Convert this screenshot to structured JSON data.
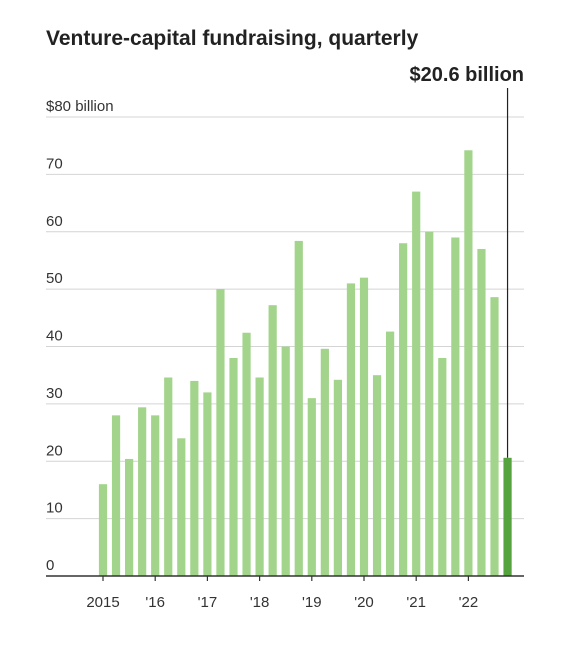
{
  "chart_data": {
    "type": "bar",
    "title": "Venture-capital fundraising, quarterly",
    "ylabel": "",
    "xlabel": "",
    "ylim": [
      0,
      80
    ],
    "yticks": [
      {
        "value": 0,
        "label": "0"
      },
      {
        "value": 10,
        "label": "10"
      },
      {
        "value": 20,
        "label": "20"
      },
      {
        "value": 30,
        "label": "30"
      },
      {
        "value": 40,
        "label": "40"
      },
      {
        "value": 50,
        "label": "50"
      },
      {
        "value": 60,
        "label": "60"
      },
      {
        "value": 70,
        "label": "70"
      },
      {
        "value": 80,
        "label": "$80 billion"
      }
    ],
    "xticks": [
      "2015",
      "'16",
      "'17",
      "'18",
      "'19",
      "'20",
      "'21",
      "'22"
    ],
    "grid": true,
    "colors": {
      "bar": "#a3d48c",
      "highlight": "#55a33f"
    },
    "categories": [
      "2015 Q1",
      "2015 Q2",
      "2015 Q3",
      "2015 Q4",
      "2016 Q1",
      "2016 Q2",
      "2016 Q3",
      "2016 Q4",
      "2017 Q1",
      "2017 Q2",
      "2017 Q3",
      "2017 Q4",
      "2018 Q1",
      "2018 Q2",
      "2018 Q3",
      "2018 Q4",
      "2019 Q1",
      "2019 Q2",
      "2019 Q3",
      "2019 Q4",
      "2020 Q1",
      "2020 Q2",
      "2020 Q3",
      "2020 Q4",
      "2021 Q1",
      "2021 Q2",
      "2021 Q3",
      "2021 Q4",
      "2022 Q1",
      "2022 Q2",
      "2022 Q3",
      "2022 Q4"
    ],
    "values": [
      16.0,
      28.0,
      20.4,
      29.4,
      28.0,
      34.6,
      24.0,
      34.0,
      32.0,
      50.0,
      38.0,
      42.4,
      34.6,
      47.2,
      40.0,
      58.4,
      31.0,
      39.6,
      34.2,
      51.0,
      52.0,
      35.0,
      42.6,
      58.0,
      67.0,
      60.0,
      38.0,
      59.0,
      74.2,
      57.0,
      48.6,
      20.6
    ],
    "highlight_index": 31,
    "annotation": "$20.6 billion"
  }
}
